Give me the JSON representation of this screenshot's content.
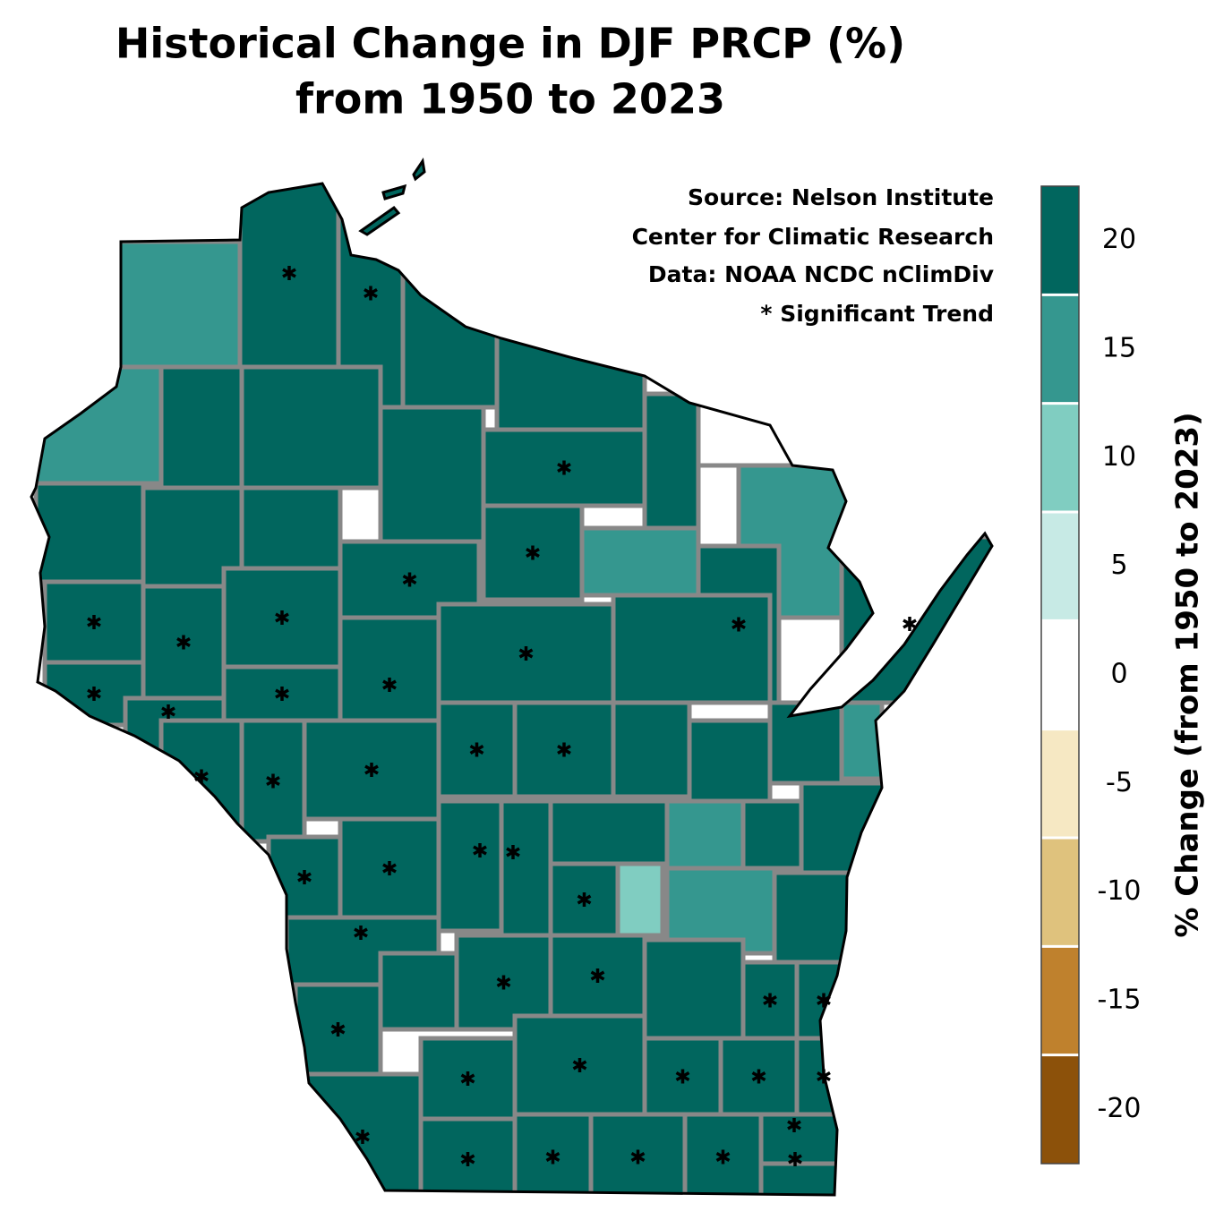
{
  "chart_data": {
    "type": "choropleth",
    "title": [
      "Historical Change in DJF PRCP (%)",
      "from 1950 to 2023"
    ],
    "annotations": [
      "Source:  Nelson Institute",
      "Center for Climatic Research",
      "Data: NOAA NCDC nClimDiv",
      "* Significant Trend"
    ],
    "colorbar": {
      "label": "% Change (from 1950 to 2023)",
      "bounds": [
        -22.5,
        -17.5,
        -12.5,
        -7.5,
        -2.5,
        2.5,
        7.5,
        12.5,
        17.5,
        22.5
      ],
      "colors": [
        "#8c510a",
        "#bf812d",
        "#dfc27d",
        "#f6e8c3",
        "#ffffff",
        "#c7eae5",
        "#80cdc1",
        "#35978f",
        "#01665e"
      ],
      "ylim": [
        -22.5,
        22.5
      ],
      "yticks": [
        -20,
        -15,
        -10,
        -5,
        0,
        5,
        10,
        15,
        20
      ]
    },
    "regions": [
      {
        "value": 15,
        "significant": false
      },
      {
        "value": 15,
        "significant": false
      },
      {
        "value": 20,
        "significant": true
      },
      {
        "value": 20,
        "significant": true
      },
      {
        "value": 20,
        "significant": false
      },
      {
        "value": 20,
        "significant": false
      },
      {
        "value": 20,
        "significant": false
      },
      {
        "value": 0,
        "significant": false
      },
      {
        "value": 15,
        "significant": false
      },
      {
        "value": 20,
        "significant": false
      },
      {
        "value": 20,
        "significant": false
      },
      {
        "value": 20,
        "significant": false
      },
      {
        "value": 20,
        "significant": false
      },
      {
        "value": 20,
        "significant": true
      },
      {
        "value": 20,
        "significant": true
      },
      {
        "value": 20,
        "significant": false
      },
      {
        "value": 20,
        "significant": false
      },
      {
        "value": 20,
        "significant": true
      },
      {
        "value": 20,
        "significant": true
      },
      {
        "value": 15,
        "significant": false
      },
      {
        "value": 20,
        "significant": true
      },
      {
        "value": 20,
        "significant": true
      },
      {
        "value": 20,
        "significant": true
      },
      {
        "value": 20,
        "significant": true
      },
      {
        "value": 20,
        "significant": true
      },
      {
        "value": 20,
        "significant": true
      },
      {
        "value": 20,
        "significant": false
      },
      {
        "value": 20,
        "significant": true
      },
      {
        "value": 20,
        "significant": true
      },
      {
        "value": 20,
        "significant": true
      },
      {
        "value": 20,
        "significant": true
      },
      {
        "value": 20,
        "significant": true
      },
      {
        "value": 20,
        "significant": true
      },
      {
        "value": 20,
        "significant": true
      },
      {
        "value": 20,
        "significant": false
      },
      {
        "value": 20,
        "significant": false
      },
      {
        "value": 20,
        "significant": false
      },
      {
        "value": 20,
        "significant": true
      },
      {
        "value": 15,
        "significant": false
      },
      {
        "value": 20,
        "significant": true
      },
      {
        "value": 20,
        "significant": true
      },
      {
        "value": 20,
        "significant": true
      },
      {
        "value": 20,
        "significant": true
      },
      {
        "value": 20,
        "significant": false
      },
      {
        "value": 20,
        "significant": true
      },
      {
        "value": 10,
        "significant": false
      },
      {
        "value": 15,
        "significant": false
      },
      {
        "value": 15,
        "significant": false
      },
      {
        "value": 20,
        "significant": false
      },
      {
        "value": 20,
        "significant": false
      },
      {
        "value": 20,
        "significant": false
      },
      {
        "value": 20,
        "significant": true
      },
      {
        "value": 20,
        "significant": false
      },
      {
        "value": 20,
        "significant": true
      },
      {
        "value": 20,
        "significant": true
      },
      {
        "value": 20,
        "significant": false
      },
      {
        "value": 20,
        "significant": true
      },
      {
        "value": 20,
        "significant": true
      },
      {
        "value": 20,
        "significant": true
      },
      {
        "value": 20,
        "significant": true
      },
      {
        "value": 20,
        "significant": true
      },
      {
        "value": 20,
        "significant": true
      },
      {
        "value": 20,
        "significant": true
      },
      {
        "value": 20,
        "significant": true
      },
      {
        "value": 20,
        "significant": true
      },
      {
        "value": 20,
        "significant": true
      },
      {
        "value": 20,
        "significant": true
      },
      {
        "value": 20,
        "significant": true
      },
      {
        "value": 20,
        "significant": true
      },
      {
        "value": 20,
        "significant": true
      },
      {
        "value": 20,
        "significant": true
      }
    ]
  }
}
